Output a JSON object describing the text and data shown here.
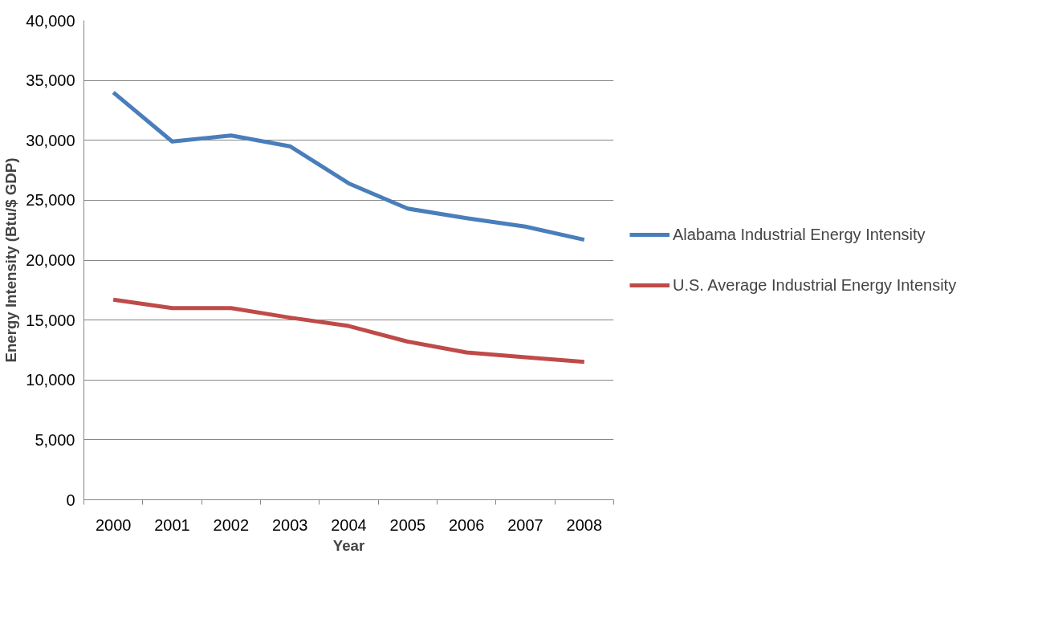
{
  "chart_data": {
    "type": "line",
    "xlabel": "Year",
    "ylabel": "Energy Intensity (Btu/$ GDP)",
    "categories": [
      "2000",
      "2001",
      "2002",
      "2003",
      "2004",
      "2005",
      "2006",
      "2007",
      "2008"
    ],
    "series": [
      {
        "name": "Alabama Industrial Energy Intensity",
        "color": "#4a7ebb",
        "values": [
          34000,
          29900,
          30400,
          29500,
          26400,
          24300,
          23500,
          22800,
          21700
        ]
      },
      {
        "name": "U.S. Average Industrial Energy Intensity",
        "color": "#be4b48",
        "values": [
          16700,
          16000,
          16000,
          15200,
          14500,
          13200,
          12300,
          11900,
          11500
        ]
      }
    ],
    "ylim": [
      0,
      40000
    ],
    "yticks": [
      {
        "value": 0,
        "label": "0"
      },
      {
        "value": 5000,
        "label": "5,000"
      },
      {
        "value": 10000,
        "label": "10,000"
      },
      {
        "value": 15000,
        "label": "15,000"
      },
      {
        "value": 20000,
        "label": "20,000"
      },
      {
        "value": 25000,
        "label": "25,000"
      },
      {
        "value": 30000,
        "label": "30,000"
      },
      {
        "value": 35000,
        "label": "35,000"
      },
      {
        "value": 40000,
        "label": "40,000"
      }
    ],
    "grid": "y",
    "legend": "right",
    "marker": "none",
    "line_style": "solid"
  }
}
